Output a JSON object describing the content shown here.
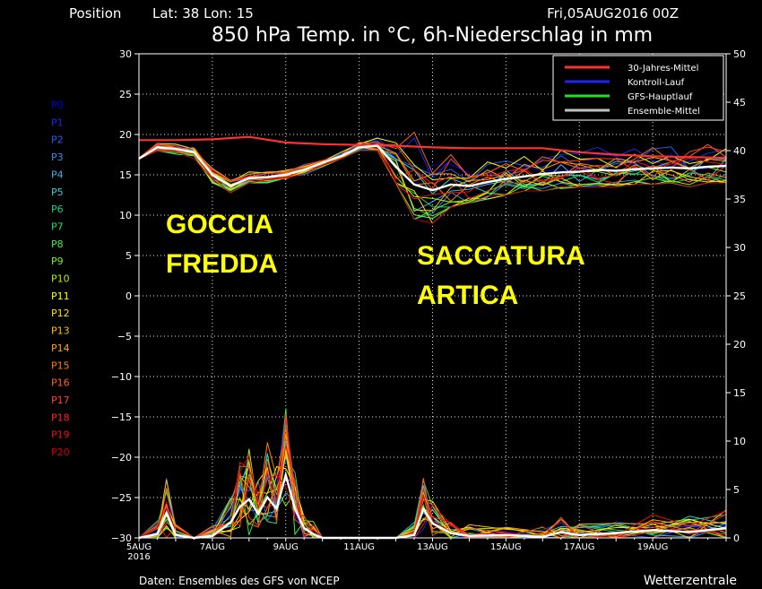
{
  "header": {
    "position_label": "Position",
    "location": "Lat: 38 Lon: 15",
    "run_time": "Fri,05AUG2016 00Z",
    "title": "850 hPa Temp. in °C, 6h-Niederschlag in mm"
  },
  "footer": {
    "source": "Daten: Ensembles des GFS von NCEP",
    "brand": "Wetterzentrale"
  },
  "annotations": [
    {
      "lines": [
        "GOCCIA",
        "FREDDA"
      ],
      "color": "#ffff00"
    },
    {
      "lines": [
        "SACCATURA",
        "ARTICA"
      ],
      "color": "#ffff00"
    }
  ],
  "members": [
    {
      "name": "P0",
      "color": "#0000dd"
    },
    {
      "name": "P1",
      "color": "#1030e0"
    },
    {
      "name": "P2",
      "color": "#2060f0"
    },
    {
      "name": "P3",
      "color": "#3090f0"
    },
    {
      "name": "P4",
      "color": "#40b0f0"
    },
    {
      "name": "P5",
      "color": "#30d0d0"
    },
    {
      "name": "P6",
      "color": "#20d080"
    },
    {
      "name": "P7",
      "color": "#20e060"
    },
    {
      "name": "P8",
      "color": "#40f040"
    },
    {
      "name": "P9",
      "color": "#80f020"
    },
    {
      "name": "P10",
      "color": "#b0f000"
    },
    {
      "name": "P11",
      "color": "#ffff00"
    },
    {
      "name": "P12",
      "color": "#ffe000"
    },
    {
      "name": "P13",
      "color": "#ffc000"
    },
    {
      "name": "P14",
      "color": "#ffa000"
    },
    {
      "name": "P15",
      "color": "#ff8000"
    },
    {
      "name": "P16",
      "color": "#ff6020"
    },
    {
      "name": "P17",
      "color": "#ff4020"
    },
    {
      "name": "P18",
      "color": "#ff2020"
    },
    {
      "name": "P19",
      "color": "#ee1010"
    },
    {
      "name": "P20",
      "color": "#cc0000"
    }
  ],
  "chart_data": {
    "type": "line",
    "x_ticks": [
      "5AUG",
      "7AUG",
      "9AUG",
      "11AUG",
      "13AUG",
      "15AUG",
      "17AUG",
      "19AUG"
    ],
    "x_year_label": "2016",
    "x_range_days": [
      5,
      21
    ],
    "y_left": {
      "label": "°C",
      "ticks": [
        30,
        25,
        20,
        15,
        10,
        5,
        0,
        -5,
        -10,
        -15,
        -20,
        -25,
        -30
      ],
      "range": [
        -30,
        30
      ]
    },
    "y_right": {
      "label": "mm",
      "ticks": [
        50,
        45,
        40,
        35,
        30,
        25,
        20,
        15,
        10,
        5,
        0
      ],
      "range": [
        0,
        50
      ]
    },
    "grid": true,
    "legend": {
      "placement": "top-right",
      "entries": [
        {
          "name": "30-Jahres-Mittel",
          "color": "#ff3030"
        },
        {
          "name": "Kontroll-Lauf",
          "color": "#2020ff"
        },
        {
          "name": "GFS-Hauptlauf",
          "color": "#20e020"
        },
        {
          "name": "Ensemble-Mittel",
          "color": "#c0c0c0"
        }
      ]
    },
    "climatology": {
      "name": "30-Jahres-Mittel",
      "x": [
        5,
        6,
        7,
        8,
        9,
        10,
        11,
        12,
        13,
        14,
        15,
        16,
        17,
        18,
        19,
        20,
        21
      ],
      "y": [
        19.3,
        19.3,
        19.4,
        19.7,
        19.0,
        18.8,
        18.7,
        18.6,
        18.4,
        18.3,
        18.3,
        18.3,
        17.8,
        17.5,
        17.3,
        17.2,
        17.1
      ]
    },
    "ensemble_mean_temp": {
      "name": "Ensemble-Mittel",
      "x": [
        5,
        5.5,
        6,
        6.5,
        7,
        7.5,
        8,
        8.5,
        9,
        9.5,
        10,
        10.5,
        11,
        11.5,
        12,
        12.5,
        13,
        13.5,
        14,
        14.5,
        15,
        15.5,
        16,
        16.5,
        17,
        17.5,
        18,
        18.5,
        19,
        19.5,
        20,
        20.5,
        21
      ],
      "y": [
        17.0,
        18.4,
        18.2,
        17.8,
        15.0,
        13.6,
        14.6,
        14.7,
        15.0,
        15.6,
        16.5,
        17.3,
        18.4,
        18.6,
        16.0,
        13.8,
        13.1,
        13.8,
        13.6,
        14.1,
        14.5,
        14.8,
        15.1,
        15.3,
        15.4,
        15.6,
        15.5,
        15.7,
        15.8,
        15.9,
        15.8,
        16.0,
        16.1
      ]
    },
    "ensemble_mean_precip": {
      "name": "Ensemble-Mittel",
      "x": [
        5,
        5.5,
        5.75,
        6,
        6.5,
        7,
        7.5,
        7.75,
        8,
        8.25,
        8.5,
        8.75,
        9,
        9.25,
        9.5,
        9.75,
        10,
        11,
        12,
        12.5,
        12.75,
        13,
        13.5,
        14,
        15,
        16,
        16.5,
        17,
        18,
        19,
        20,
        21
      ],
      "y": [
        0,
        0.4,
        2.6,
        0.3,
        0,
        0.2,
        1.6,
        3.2,
        4.0,
        2.5,
        4.2,
        3.0,
        6.5,
        3.0,
        1.0,
        0.4,
        0,
        0,
        0,
        0.3,
        3.0,
        1.5,
        0.5,
        0.2,
        0.3,
        0.1,
        0.6,
        0.3,
        0.5,
        0.8,
        0.6,
        1.0
      ]
    },
    "temp_spread": {
      "min": [
        17,
        18,
        17.5,
        17,
        14,
        12.8,
        14,
        14,
        14.5,
        15,
        16,
        17,
        18,
        18,
        14,
        9.5,
        9,
        11,
        11.5,
        12,
        12.5,
        13,
        13,
        13.3,
        13.5,
        13.5,
        13.5,
        13.8,
        13.8,
        14,
        13.5,
        14,
        14
      ]
    },
    "temp_spread_max": [
      17.2,
      19,
      18.8,
      18.4,
      15.8,
      14.4,
      15.5,
      15.5,
      15.8,
      16.5,
      17.2,
      18,
      19.5,
      20.5,
      21.5,
      22.5,
      20,
      18.5,
      16.8,
      17.2,
      17.8,
      18,
      18,
      18.5,
      19,
      19,
      19.2,
      19.5,
      19.5,
      19.8,
      19.6,
      20,
      20
    ]
  }
}
